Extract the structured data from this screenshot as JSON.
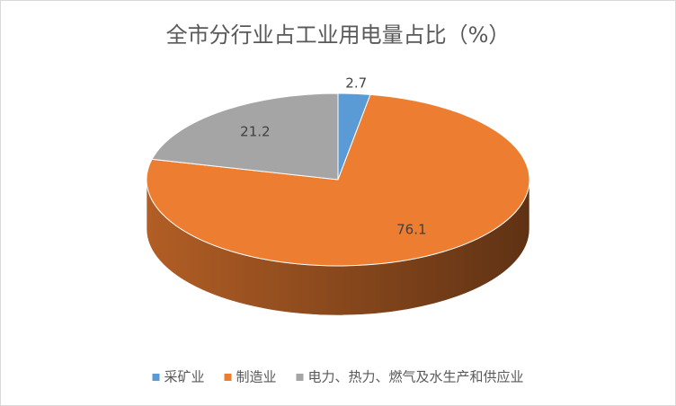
{
  "chart_data": {
    "type": "pie",
    "title": "全市分行业占工业用电量占比（%）",
    "categories": [
      "采矿业",
      "制造业",
      "电力、热力、燃气及水生产和供应业"
    ],
    "values": [
      2.7,
      76.1,
      21.2
    ],
    "colors": [
      "#5b9bd5",
      "#ed7d31",
      "#a5a5a5"
    ],
    "legend": "bottom"
  }
}
